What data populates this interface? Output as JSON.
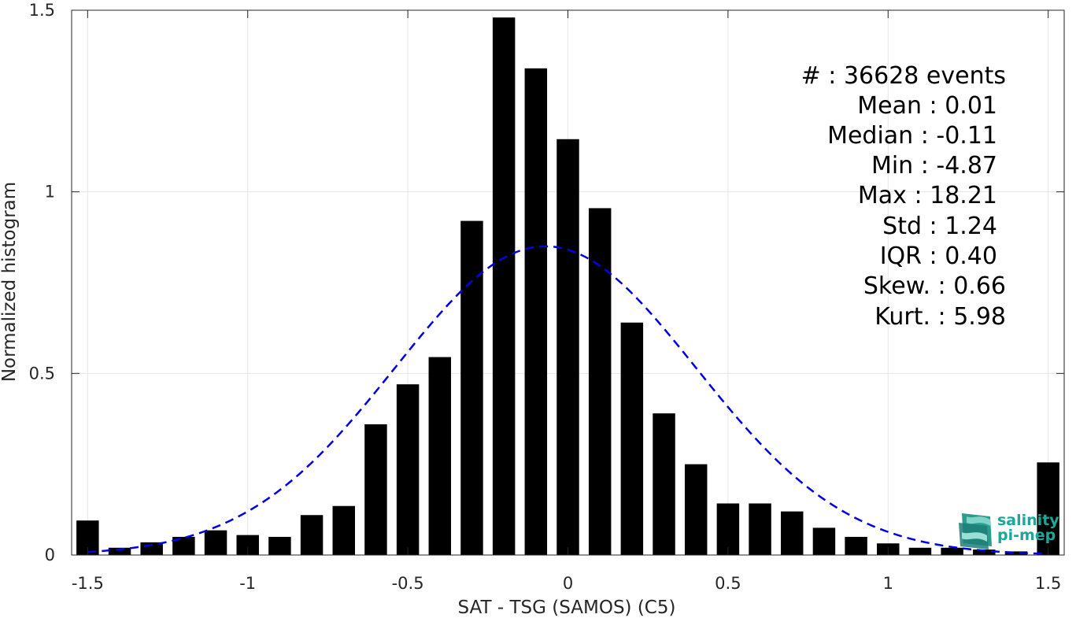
{
  "chart_data": {
    "type": "bar",
    "xlabel": "SAT - TSG (SAMOS) (C5)",
    "ylabel": "Normalized histogram",
    "xlim": [
      -1.55,
      1.55
    ],
    "ylim": [
      0,
      1.5
    ],
    "grid": true,
    "x_ticks": [
      -1.5,
      -1,
      -0.5,
      0,
      0.5,
      1,
      1.5
    ],
    "x_tick_labels": [
      "-1.5",
      "-1",
      "-0.5",
      "0",
      "0.5",
      "1",
      "1.5"
    ],
    "y_ticks": [
      0,
      0.5,
      1,
      1.5
    ],
    "y_tick_labels": [
      "0",
      "0.5",
      "1",
      "1.5"
    ],
    "bin_width": 0.1,
    "bars": [
      {
        "x": -1.5,
        "y": 0.095
      },
      {
        "x": -1.4,
        "y": 0.02
      },
      {
        "x": -1.3,
        "y": 0.035
      },
      {
        "x": -1.2,
        "y": 0.05
      },
      {
        "x": -1.1,
        "y": 0.068
      },
      {
        "x": -1.0,
        "y": 0.055
      },
      {
        "x": -0.9,
        "y": 0.05
      },
      {
        "x": -0.8,
        "y": 0.11
      },
      {
        "x": -0.7,
        "y": 0.135
      },
      {
        "x": -0.6,
        "y": 0.36
      },
      {
        "x": -0.5,
        "y": 0.47
      },
      {
        "x": -0.4,
        "y": 0.545
      },
      {
        "x": -0.3,
        "y": 0.92
      },
      {
        "x": -0.2,
        "y": 1.48
      },
      {
        "x": -0.1,
        "y": 1.34
      },
      {
        "x": 0.0,
        "y": 1.145
      },
      {
        "x": 0.1,
        "y": 0.955
      },
      {
        "x": 0.2,
        "y": 0.64
      },
      {
        "x": 0.3,
        "y": 0.39
      },
      {
        "x": 0.4,
        "y": 0.25
      },
      {
        "x": 0.5,
        "y": 0.142
      },
      {
        "x": 0.6,
        "y": 0.142
      },
      {
        "x": 0.7,
        "y": 0.12
      },
      {
        "x": 0.8,
        "y": 0.075
      },
      {
        "x": 0.9,
        "y": 0.05
      },
      {
        "x": 1.0,
        "y": 0.032
      },
      {
        "x": 1.1,
        "y": 0.02
      },
      {
        "x": 1.2,
        "y": 0.02
      },
      {
        "x": 1.3,
        "y": 0.015
      },
      {
        "x": 1.4,
        "y": 0.01
      },
      {
        "x": 1.5,
        "y": 0.255
      }
    ],
    "fit_curve": {
      "type": "gaussian",
      "style": "dashed",
      "color": "#0000e6",
      "mean": -0.07,
      "std": 0.47,
      "peak": 0.85,
      "x_range": [
        -1.5,
        1.5
      ]
    },
    "bar_color": "#000000",
    "stats": [
      {
        "label": "#  ",
        "value": ": 36628 events"
      },
      {
        "label": "Mean ",
        "value": ": 0.01"
      },
      {
        "label": "Median ",
        "value": ": -0.11"
      },
      {
        "label": "Min ",
        "value": ": -4.87"
      },
      {
        "label": "Max ",
        "value": ": 18.21"
      },
      {
        "label": "Std ",
        "value": ": 1.24"
      },
      {
        "label": "IQR ",
        "value": ": 0.40"
      },
      {
        "label": "Skew. ",
        "value": ": 0.66"
      },
      {
        "label": "Kurt. ",
        "value": ": 5.98"
      }
    ]
  },
  "logo": {
    "line1": "salinity",
    "line2": "pi-mep",
    "icon": "wave-flag-icon",
    "color": "#1aa89a"
  }
}
